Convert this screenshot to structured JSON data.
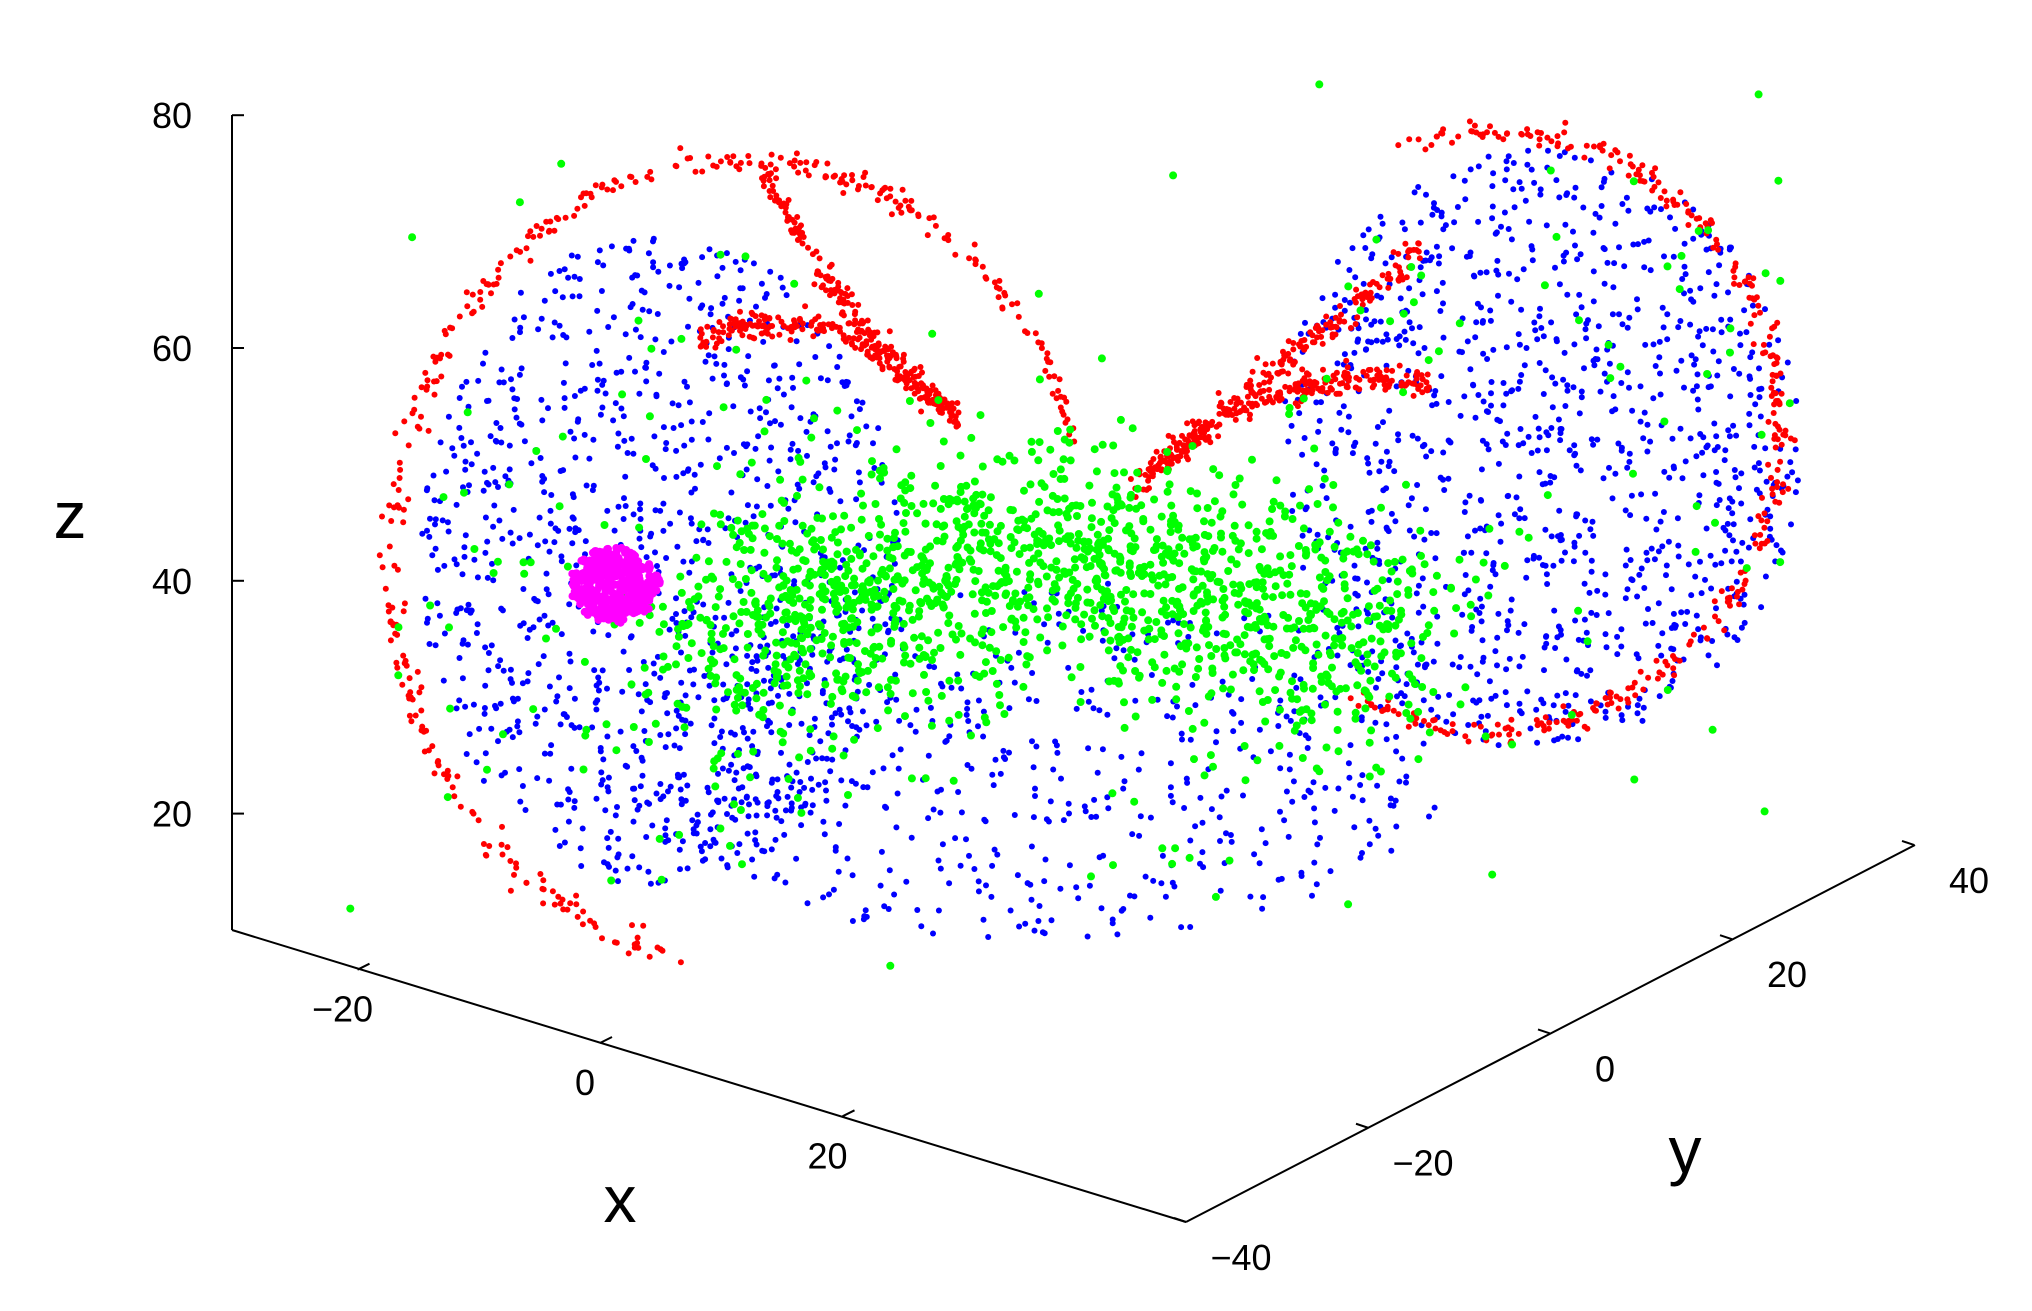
{
  "chart_data": {
    "type": "scatter3d",
    "title": "",
    "xlabel": "x",
    "ylabel": "y",
    "zlabel": "z",
    "xlim": [
      -35,
      35
    ],
    "ylim": [
      -40,
      40
    ],
    "zlim": [
      10,
      80
    ],
    "x_ticks": [
      -20,
      0,
      20
    ],
    "y_ticks": [
      -40,
      -20,
      0,
      20,
      40
    ],
    "z_ticks": [
      20,
      40,
      60,
      80
    ],
    "x_tick_labels": [
      "−20",
      "0",
      "20"
    ],
    "y_tick_labels": [
      "−40",
      "−20",
      "0",
      "20",
      "40"
    ],
    "z_tick_labels": [
      "20",
      "40",
      "60",
      "80"
    ],
    "grid": false,
    "legend": "none",
    "series": [
      {
        "color": "#0000ff",
        "marker_size": 3,
        "count": 2600,
        "pattern": "broad lorenz attractor cloud"
      },
      {
        "color": "#00ff00",
        "marker_size": 4,
        "count": 1800,
        "pattern": "dense central band with scattered outliers"
      },
      {
        "color": "#ff0000",
        "marker_size": 3,
        "count": 1500,
        "pattern": "outer rim and inner lobe arcs"
      },
      {
        "color": "#ff00ff",
        "marker_size": 4,
        "count": 400,
        "pattern": "compact cluster near x=-10, z=40"
      }
    ]
  }
}
